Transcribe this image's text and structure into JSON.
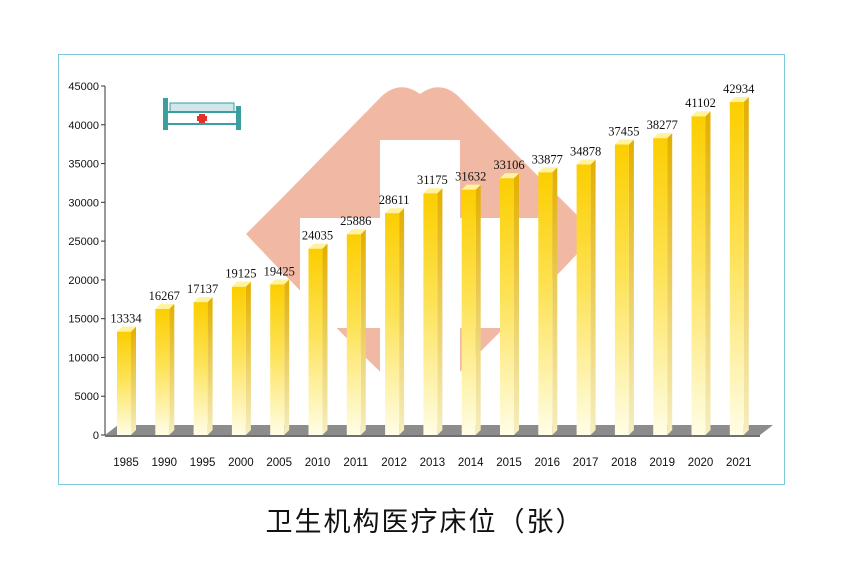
{
  "title": "卫生机构医疗床位（张）",
  "icons": [
    "hospital-bed-icon",
    "red-cross-emblem"
  ],
  "colors": {
    "bar_top": "#fcd200",
    "bar_bottom": "#fffde0",
    "floor": "#8a8a8a",
    "frame": "#7fc9dc",
    "emblem": "#efad93"
  },
  "chart_data": {
    "type": "bar",
    "categories": [
      "1985",
      "1990",
      "1995",
      "2000",
      "2005",
      "2010",
      "2011",
      "2012",
      "2013",
      "2014",
      "2015",
      "2016",
      "2017",
      "2018",
      "2019",
      "2020",
      "2021"
    ],
    "values": [
      13334,
      16267,
      17137,
      19125,
      19425,
      24035,
      25886,
      28611,
      31175,
      31632,
      33106,
      33877,
      34878,
      37455,
      38277,
      41102,
      42934
    ],
    "data_labels": [
      "13334",
      "16267",
      "17137",
      "19125",
      "19425",
      "24035",
      "25886",
      "28611",
      "31175",
      "31632",
      "33106",
      "33877",
      "34878",
      "37455",
      "38277",
      "41102",
      "42934"
    ],
    "y_ticks": [
      "0",
      "5000",
      "10000",
      "15000",
      "20000",
      "25000",
      "30000",
      "35000",
      "40000",
      "45000"
    ],
    "ylim": [
      0,
      45000
    ],
    "grid": false,
    "legend": "none"
  }
}
